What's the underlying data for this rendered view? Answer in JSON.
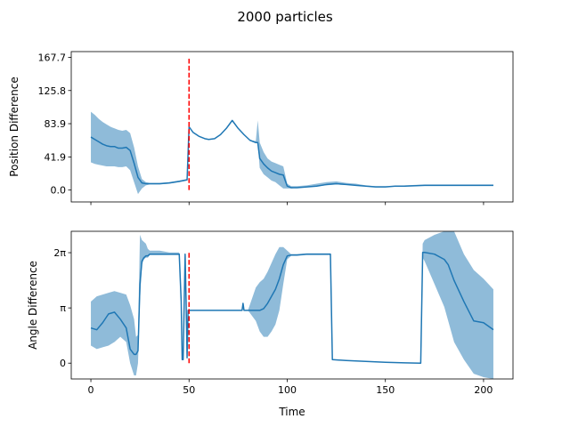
{
  "figure": {
    "title": "2000 particles"
  },
  "chart_data": [
    {
      "type": "line",
      "ylabel": "Position Difference",
      "xlabel": "",
      "xlim": [
        -10,
        215
      ],
      "ylim": [
        -15,
        175
      ],
      "yticks": [
        0.0,
        41.9,
        83.9,
        125.8,
        167.7
      ],
      "ytick_labels": [
        "0.0",
        "41.9",
        "83.9",
        "125.8",
        "167.7"
      ],
      "xticks": [
        0,
        50,
        100,
        150,
        200
      ],
      "xtick_labels": [],
      "marker_x": 50,
      "marker_range": [
        0,
        167.7
      ],
      "series": [
        {
          "color": "#1f77b4",
          "x": [
            0,
            2,
            4,
            6,
            8,
            10,
            12,
            14,
            16,
            18,
            20,
            22,
            24,
            26,
            28,
            30,
            35,
            40,
            45,
            49,
            50,
            52,
            55,
            58,
            60,
            63,
            66,
            69,
            72,
            75,
            78,
            81,
            84,
            85,
            86,
            88,
            90,
            92,
            94,
            96,
            98,
            100,
            102,
            105,
            110,
            115,
            120,
            125,
            130,
            135,
            140,
            145,
            150,
            155,
            160,
            170,
            180,
            190,
            200,
            205
          ],
          "mean": [
            67,
            64,
            61,
            58,
            56,
            55,
            55,
            53,
            53,
            54,
            50,
            34,
            16,
            9,
            8,
            8,
            8,
            9,
            11,
            13,
            80,
            73,
            68,
            65,
            64,
            65,
            70,
            78,
            88,
            78,
            70,
            63,
            60,
            60,
            40,
            33,
            28,
            24,
            22,
            20,
            19,
            5,
            3,
            3,
            4,
            5,
            7,
            8,
            7,
            6,
            5,
            4,
            4,
            5,
            5,
            6,
            6,
            6,
            6,
            6
          ],
          "lower": [
            35,
            33,
            32,
            31,
            30,
            30,
            30,
            29,
            29,
            30,
            25,
            10,
            -5,
            2,
            6,
            7,
            7,
            8,
            10,
            12,
            80,
            73,
            68,
            65,
            64,
            65,
            70,
            78,
            88,
            78,
            70,
            63,
            60,
            60,
            28,
            20,
            16,
            12,
            10,
            6,
            2,
            2,
            2,
            3,
            4,
            5,
            6,
            7,
            7,
            6,
            5,
            4,
            4,
            5,
            5,
            6,
            6,
            6,
            6,
            6
          ],
          "upper": [
            99,
            95,
            90,
            86,
            83,
            80,
            78,
            76,
            75,
            76,
            72,
            54,
            30,
            14,
            10,
            9,
            9,
            10,
            12,
            14,
            80,
            73,
            68,
            65,
            64,
            65,
            70,
            78,
            88,
            78,
            70,
            63,
            62,
            88,
            60,
            48,
            40,
            36,
            34,
            32,
            30,
            8,
            5,
            5,
            6,
            8,
            10,
            11,
            9,
            8,
            6,
            5,
            5,
            5,
            6,
            7,
            7,
            7,
            7,
            7
          ]
        }
      ]
    },
    {
      "type": "line",
      "ylabel": "Angle Difference",
      "xlabel": "Time",
      "xlim": [
        -10,
        215
      ],
      "ylim": [
        -0.9,
        7.5
      ],
      "yticks": [
        0,
        3.14159,
        6.28318
      ],
      "ytick_labels": [
        "0",
        "π",
        "2π"
      ],
      "xticks": [
        0,
        50,
        100,
        150,
        200
      ],
      "xtick_labels": [
        "0",
        "50",
        "100",
        "150",
        "200"
      ],
      "marker_x": 50,
      "marker_range": [
        0,
        6.28
      ],
      "series": [
        {
          "color": "#1f77b4",
          "x": [
            0,
            3,
            6,
            9,
            12,
            15,
            18,
            20,
            22,
            23,
            24,
            25,
            26,
            27,
            28,
            29,
            30,
            35,
            40,
            45,
            46,
            46.5,
            47,
            48,
            48.5,
            49,
            49.5,
            50,
            51,
            55,
            60,
            65,
            70,
            77,
            77.5,
            78,
            79,
            80,
            84,
            86,
            88,
            90,
            92,
            94,
            96,
            98,
            100,
            102,
            105,
            110,
            115,
            122,
            123,
            130,
            140,
            150,
            160,
            168,
            169,
            170,
            175,
            180,
            182,
            185,
            190,
            195,
            200,
            205
          ],
          "mean": [
            2.0,
            1.9,
            2.3,
            2.8,
            2.9,
            2.5,
            2.0,
            0.8,
            0.5,
            0.5,
            0.7,
            4.5,
            5.8,
            6.0,
            6.1,
            6.1,
            6.2,
            6.2,
            6.2,
            6.2,
            3.5,
            0.2,
            0.2,
            6.2,
            3.5,
            0.3,
            3.0,
            3.0,
            3.0,
            3.0,
            3.0,
            3.0,
            3.0,
            3.0,
            3.4,
            3.0,
            3.0,
            3.0,
            3.0,
            3.0,
            3.1,
            3.4,
            3.8,
            4.2,
            4.8,
            5.6,
            6.1,
            6.15,
            6.15,
            6.2,
            6.2,
            6.2,
            0.2,
            0.15,
            0.1,
            0.05,
            0.02,
            0.0,
            6.3,
            6.3,
            6.2,
            5.9,
            5.6,
            4.7,
            3.5,
            2.4,
            2.3,
            1.9
          ],
          "lower": [
            1.0,
            0.8,
            0.9,
            1.0,
            1.2,
            1.5,
            1.2,
            0.0,
            -0.7,
            -0.7,
            0.0,
            3.5,
            5.6,
            5.9,
            6.0,
            6.0,
            6.15,
            6.15,
            6.15,
            6.15,
            3.5,
            0.2,
            0.2,
            6.15,
            3.5,
            0.3,
            3.0,
            3.0,
            3.0,
            3.0,
            3.0,
            3.0,
            3.0,
            3.0,
            3.4,
            3.0,
            3.0,
            3.0,
            2.4,
            1.8,
            1.5,
            1.5,
            1.8,
            2.2,
            3.0,
            4.5,
            5.9,
            6.1,
            6.1,
            6.15,
            6.15,
            6.15,
            0.2,
            0.15,
            0.1,
            0.05,
            0.02,
            0.0,
            6.0,
            5.8,
            4.5,
            3.2,
            2.4,
            1.2,
            0.2,
            -0.6,
            -0.8,
            -0.9
          ],
          "upper": [
            3.5,
            3.8,
            3.9,
            4.0,
            4.1,
            4.0,
            3.9,
            3.3,
            2.5,
            1.5,
            1.6,
            7.3,
            7.0,
            6.9,
            6.8,
            6.5,
            6.4,
            6.4,
            6.3,
            6.3,
            3.5,
            0.2,
            0.2,
            6.3,
            3.5,
            0.3,
            3.0,
            3.0,
            3.0,
            3.0,
            3.0,
            3.0,
            3.0,
            3.0,
            3.4,
            3.0,
            3.0,
            3.0,
            4.3,
            4.6,
            4.8,
            5.2,
            5.7,
            6.2,
            6.6,
            6.6,
            6.4,
            6.2,
            6.2,
            6.25,
            6.25,
            6.25,
            0.2,
            0.15,
            0.1,
            0.05,
            0.02,
            0.0,
            6.8,
            7.0,
            7.3,
            7.5,
            7.5,
            7.5,
            6.2,
            5.3,
            4.8,
            4.2
          ]
        }
      ]
    }
  ]
}
